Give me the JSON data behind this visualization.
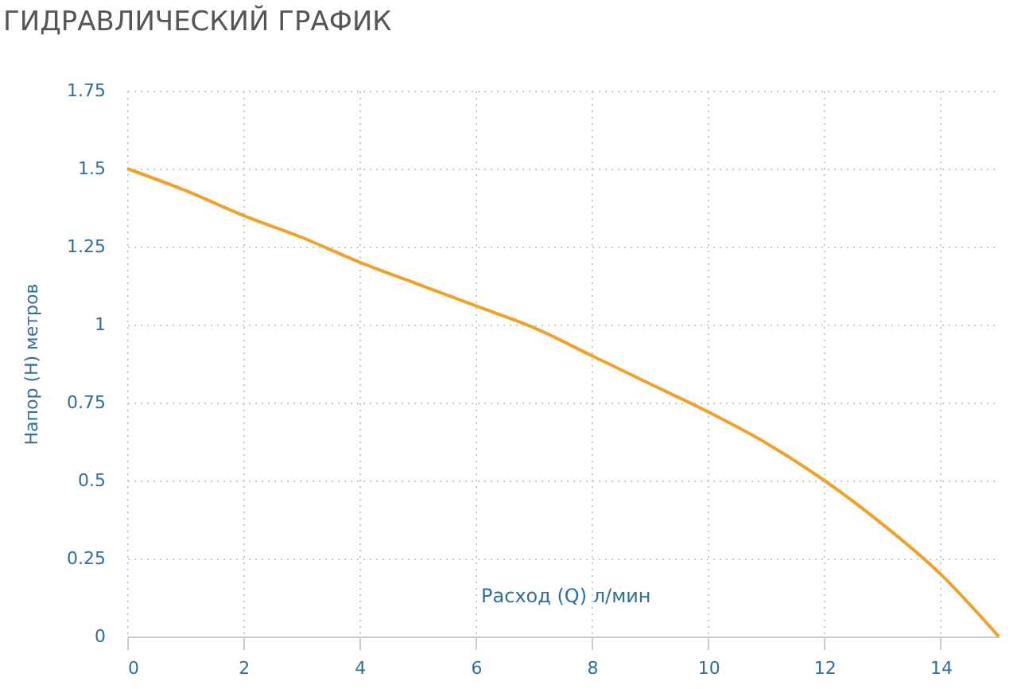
{
  "chart_data": {
    "type": "line",
    "title": "ГИДРАВЛИЧЕСКИЙ ГРАФИК",
    "xlabel": "Расход (Q) л/мин",
    "ylabel": "Напор (H) метров",
    "x": [
      0,
      1,
      2,
      3,
      4,
      5,
      6,
      7,
      8,
      9,
      10,
      11,
      12,
      13,
      14,
      15
    ],
    "series": [
      {
        "color": "#f0a12c",
        "values": [
          1.5,
          1.43,
          1.35,
          1.28,
          1.2,
          1.13,
          1.06,
          0.99,
          0.9,
          0.81,
          0.72,
          0.62,
          0.5,
          0.36,
          0.2,
          0
        ]
      }
    ],
    "xlim": [
      0,
      15
    ],
    "xticks": [
      0,
      2,
      4,
      6,
      8,
      10,
      12,
      14
    ],
    "ylim": [
      0,
      1.75
    ],
    "yticks": [
      0,
      0.25,
      0.5,
      0.75,
      1,
      1.25,
      1.5,
      1.75
    ],
    "grid": true,
    "line_style": "solid",
    "marker": "none"
  }
}
